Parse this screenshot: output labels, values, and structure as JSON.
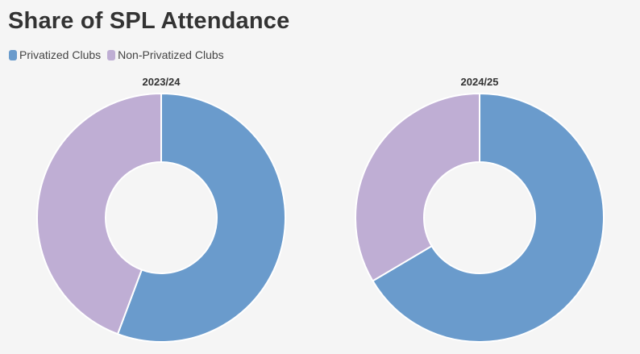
{
  "title": "Share of SPL Attendance",
  "colors": {
    "privatized": "#6a9bcc",
    "non_privatized": "#bfaed4"
  },
  "chart_data": {
    "type": "pie",
    "title": "Share of SPL Attendance",
    "legend_position": "top-left",
    "legend": [
      "Privatized Clubs",
      "Non-Privatized Clubs"
    ],
    "charts": [
      {
        "title": "2023/24",
        "slices": [
          {
            "label": "Privatized Clubs",
            "value": 55.7
          },
          {
            "label": "Non-Privatized Clubs",
            "value": 44.3
          }
        ]
      },
      {
        "title": "2024/25",
        "slices": [
          {
            "label": "Privatized Clubs",
            "value": 66.5
          },
          {
            "label": "Non-Privatized Clubs",
            "value": 33.5
          }
        ]
      }
    ]
  }
}
